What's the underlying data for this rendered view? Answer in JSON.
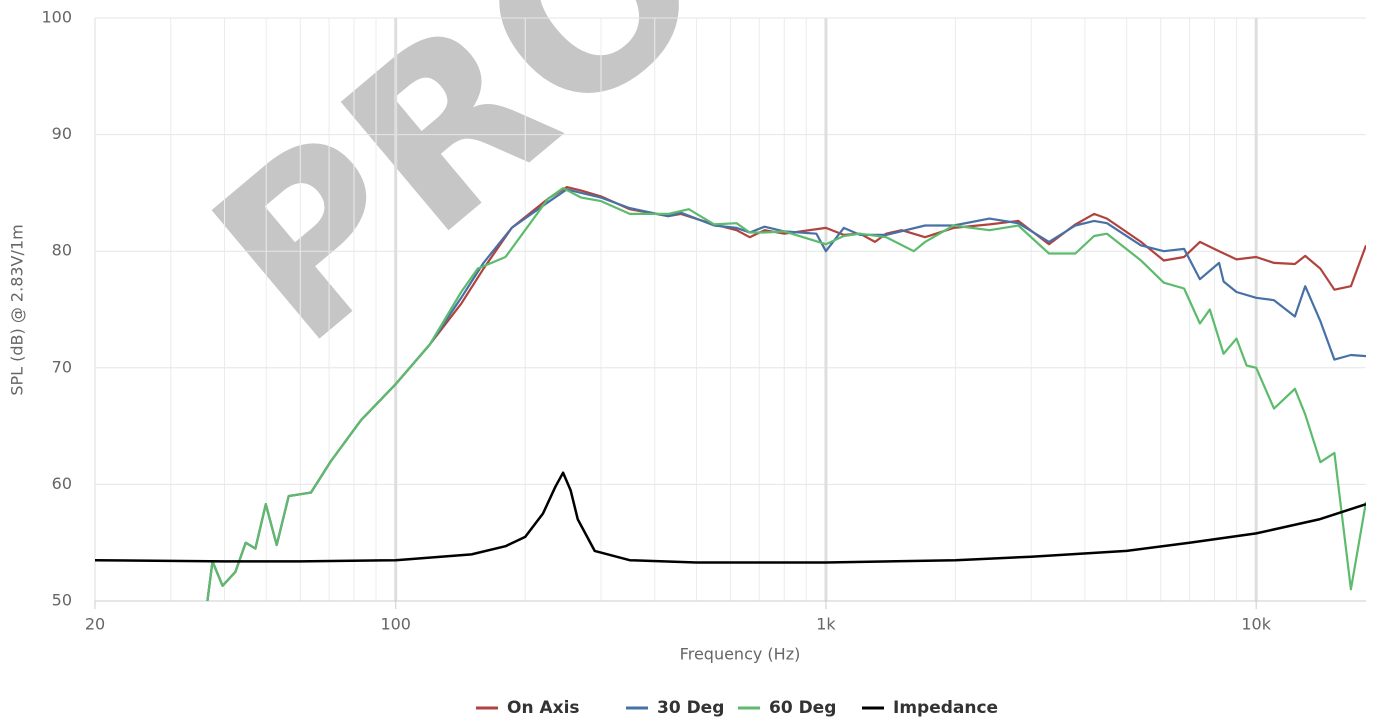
{
  "chart_data": {
    "type": "line",
    "watermark": "PRO",
    "x_label": "Frequency (Hz)",
    "y_label": "SPL (dB) @ 2.83V/1m",
    "log_x": true,
    "grid": true,
    "legend": "bottom",
    "xlim": [
      20,
      18000
    ],
    "ylim": [
      50,
      100
    ],
    "xticks": [
      20,
      100,
      {
        "value": 1000,
        "label": "1k"
      },
      {
        "value": 10000,
        "label": "10k"
      }
    ],
    "xminorticks": [
      30,
      40,
      50,
      60,
      70,
      80,
      90,
      200,
      300,
      400,
      500,
      600,
      700,
      800,
      900,
      2000,
      3000,
      4000,
      5000,
      6000,
      7000,
      8000,
      9000
    ],
    "yticks": [
      50,
      60,
      70,
      80,
      90,
      100
    ],
    "series": [
      {
        "name": "On Axis",
        "color": "#b0433d",
        "x": [
          36.5,
          37.5,
          39.6,
          42.4,
          44.8,
          47.2,
          49.9,
          52.9,
          56.4,
          63.5,
          70.7,
          83,
          100,
          120,
          142,
          160,
          186,
          226,
          250,
          270,
          300,
          350,
          430,
          460,
          550,
          620,
          665,
          720,
          800,
          1000,
          1100,
          1200,
          1300,
          1380,
          1500,
          1700,
          1980,
          2400,
          2800,
          3300,
          3800,
          4200,
          4500,
          5400,
          6100,
          6800,
          7400,
          8200,
          9000,
          10000,
          11000,
          12300,
          13000,
          14100,
          15200,
          16600,
          18000
        ],
        "values": [
          50,
          53.4,
          51.3,
          52.5,
          55,
          54.5,
          58.3,
          54.8,
          59,
          59.3,
          62,
          65.5,
          68.6,
          72,
          75.5,
          78.5,
          82,
          84.5,
          85.5,
          85.2,
          84.7,
          83.6,
          83,
          83.2,
          82.3,
          81.8,
          81.2,
          81.8,
          81.5,
          82,
          81.4,
          81.5,
          80.8,
          81.5,
          81.8,
          81.2,
          82,
          82.3,
          82.6,
          80.6,
          82.3,
          83.2,
          82.8,
          80.8,
          79.2,
          79.5,
          80.8,
          80,
          79.3,
          79.5,
          79,
          78.9,
          79.6,
          78.5,
          76.7,
          77,
          80.5
        ]
      },
      {
        "name": "30 Deg",
        "color": "#4771a6",
        "x": [
          36.5,
          37.5,
          39.6,
          42.4,
          44.8,
          47.2,
          49.9,
          52.9,
          56.4,
          63.5,
          70.7,
          83,
          100,
          120,
          142,
          160,
          186,
          226,
          250,
          270,
          300,
          350,
          430,
          460,
          550,
          620,
          665,
          720,
          800,
          950,
          1000,
          1100,
          1200,
          1380,
          1700,
          1980,
          2400,
          2800,
          3300,
          3800,
          4200,
          4500,
          5400,
          6100,
          6800,
          7400,
          8200,
          8400,
          9000,
          10000,
          11000,
          12300,
          13000,
          14100,
          15200,
          16600,
          18000
        ],
        "values": [
          50,
          53.4,
          51.3,
          52.5,
          55,
          54.5,
          58.3,
          54.8,
          59,
          59.3,
          62,
          65.5,
          68.6,
          72,
          76,
          79,
          82,
          84.2,
          85.3,
          85,
          84.6,
          83.7,
          83,
          83.3,
          82.2,
          82,
          81.6,
          82.1,
          81.7,
          81.5,
          80,
          82,
          81.4,
          81.4,
          82.2,
          82.2,
          82.8,
          82.4,
          80.8,
          82.2,
          82.6,
          82.4,
          80.5,
          80,
          80.2,
          77.6,
          79,
          77.4,
          76.5,
          76,
          75.8,
          74.4,
          77,
          74,
          70.7,
          71.1,
          71
        ]
      },
      {
        "name": "60 Deg",
        "color": "#5cbb6c",
        "x": [
          36.5,
          37.5,
          39.6,
          42.4,
          44.8,
          47.2,
          49.9,
          52.9,
          56.4,
          63.5,
          70.7,
          83,
          100,
          120,
          142,
          155,
          180,
          226,
          245,
          270,
          300,
          350,
          430,
          480,
          550,
          620,
          665,
          720,
          800,
          1000,
          1100,
          1200,
          1380,
          1600,
          1700,
          1980,
          2400,
          2800,
          3300,
          3800,
          4200,
          4500,
          5400,
          6100,
          6800,
          7400,
          7800,
          8400,
          9000,
          9500,
          10000,
          11000,
          12300,
          13000,
          14100,
          15200,
          16600,
          18000
        ],
        "values": [
          50,
          53.4,
          51.3,
          52.5,
          55,
          54.5,
          58.3,
          54.8,
          59,
          59.3,
          62,
          65.5,
          68.6,
          72,
          76.5,
          78.5,
          79.5,
          84.5,
          85.4,
          84.6,
          84.3,
          83.2,
          83.2,
          83.6,
          82.3,
          82.4,
          81.6,
          81.6,
          81.7,
          80.6,
          81.3,
          81.5,
          81.2,
          80,
          80.8,
          82.2,
          81.8,
          82.2,
          79.8,
          79.8,
          81.3,
          81.5,
          79.2,
          77.3,
          76.8,
          73.8,
          75,
          71.2,
          72.5,
          70.2,
          70,
          66.5,
          68.2,
          66,
          61.9,
          62.7,
          51,
          58.5
        ]
      },
      {
        "name": "Impedance",
        "color": "#000000",
        "x": [
          20,
          40,
          60,
          100,
          150,
          180,
          200,
          220,
          235,
          245,
          255,
          265,
          290,
          350,
          500,
          1000,
          2000,
          3000,
          5000,
          7000,
          10000,
          14000,
          18000
        ],
        "values": [
          53.5,
          53.4,
          53.4,
          53.5,
          54,
          54.7,
          55.5,
          57.5,
          59.8,
          61,
          59.5,
          57,
          54.3,
          53.5,
          53.3,
          53.3,
          53.5,
          53.8,
          54.3,
          55,
          55.8,
          57,
          58.3
        ]
      }
    ]
  }
}
